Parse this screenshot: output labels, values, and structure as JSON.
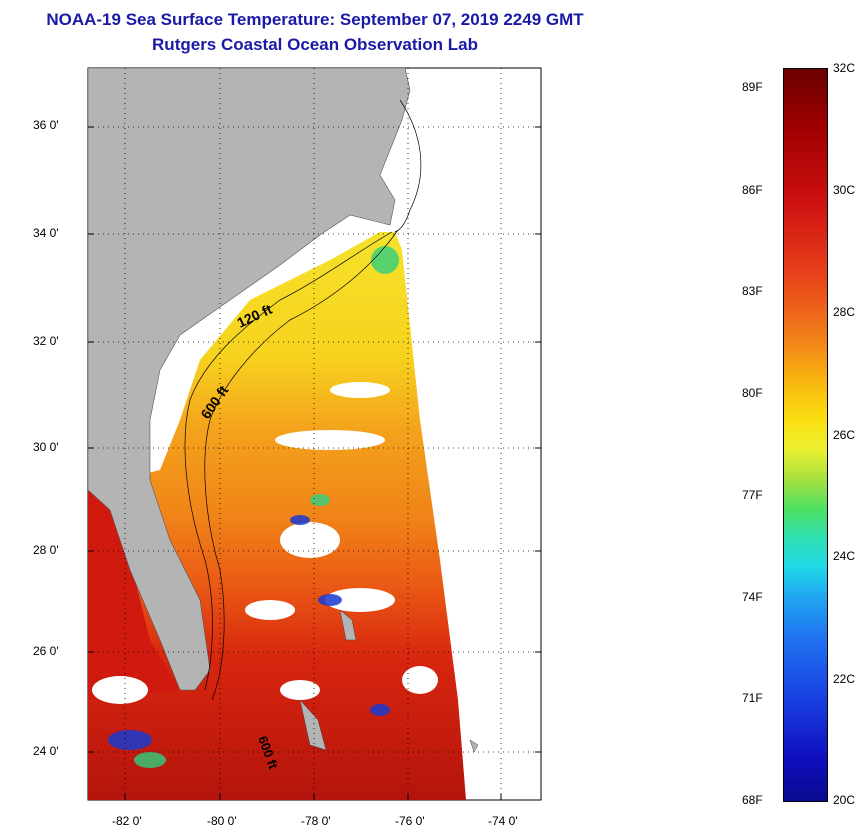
{
  "header": {
    "title": "NOAA-19 Sea Surface Temperature:  September 07, 2019 2249 GMT",
    "subtitle": "Rutgers Coastal Ocean Observation Lab"
  },
  "map": {
    "lat_labels": [
      "36 0'",
      "34 0'",
      "32 0'",
      "30 0'",
      "28 0'",
      "26 0'",
      "24 0'"
    ],
    "lon_labels": [
      "-82 0'",
      "-80 0'",
      "-78 0'",
      "-76 0'",
      "-74 0'"
    ],
    "contours": {
      "shallow": "120 ft",
      "deep": "600 ft",
      "deep_south": "600 ft"
    },
    "colors": {
      "land": "#b4b4b4",
      "cloud": "#ffffff",
      "warm": "#d81e10",
      "mid": "#f07d18",
      "cool": "#f5e22a"
    }
  },
  "colorbar": {
    "fahrenheit": [
      "89F",
      "86F",
      "83F",
      "80F",
      "77F",
      "74F",
      "71F",
      "68F"
    ],
    "celsius": [
      "32C",
      "30C",
      "28C",
      "26C",
      "24C",
      "22C",
      "20C"
    ]
  }
}
